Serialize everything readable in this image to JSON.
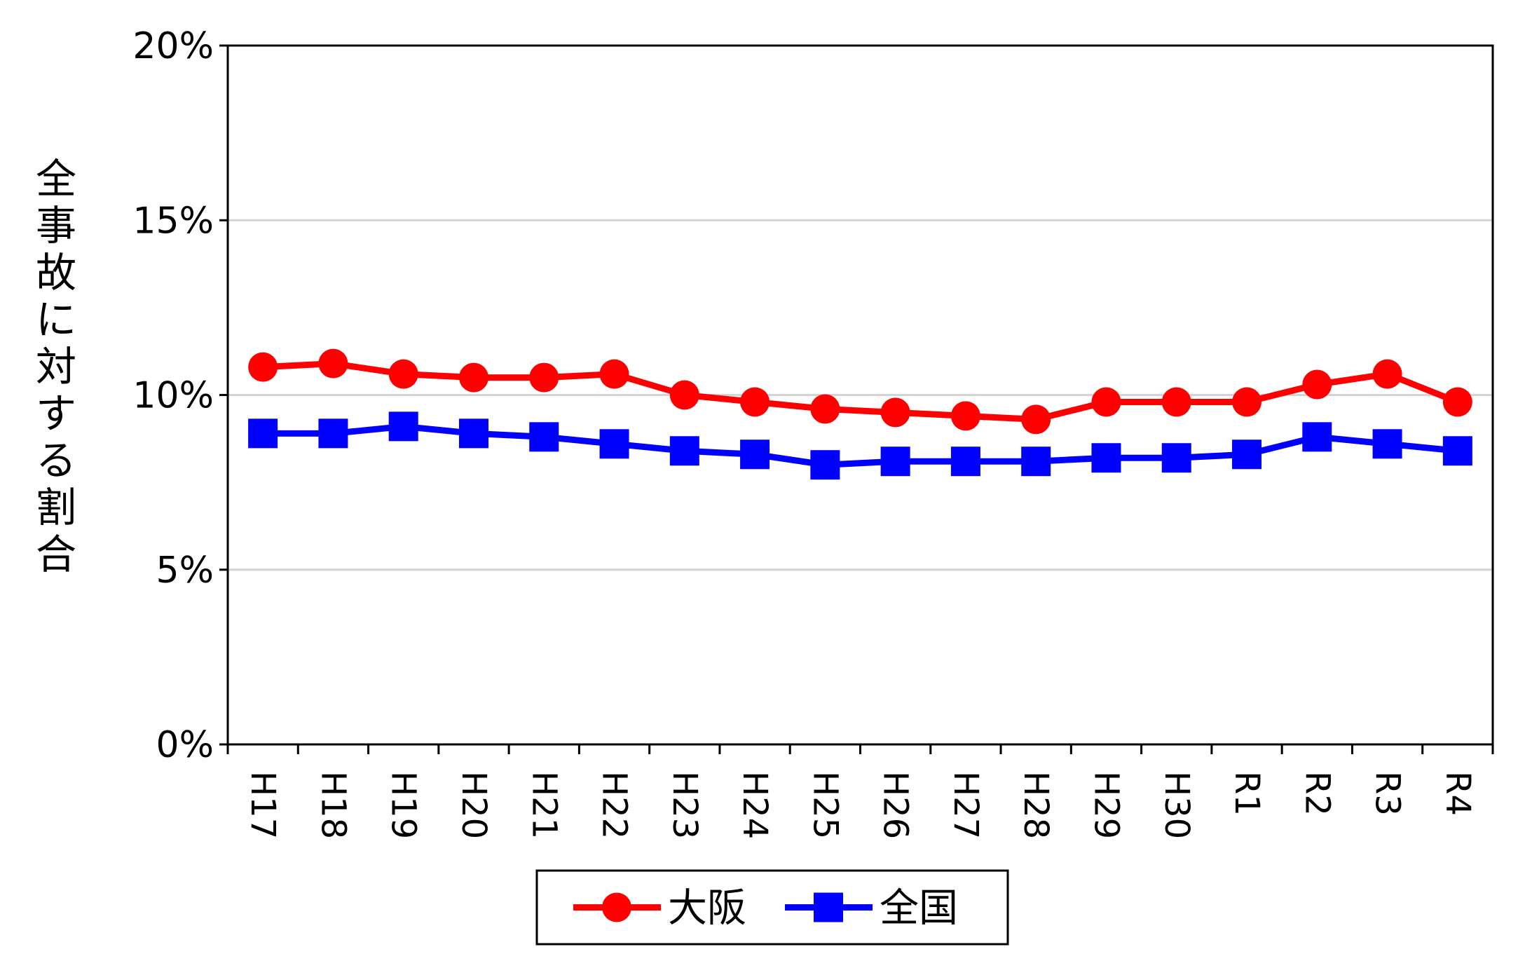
{
  "chart_data": {
    "type": "line",
    "ylabel": "全事故に対する割合",
    "xlabel": "",
    "title": "",
    "categories": [
      "H17",
      "H18",
      "H19",
      "H20",
      "H21",
      "H22",
      "H23",
      "H24",
      "H25",
      "H26",
      "H27",
      "H28",
      "H29",
      "H30",
      "R1",
      "R2",
      "R3",
      "R4"
    ],
    "ylim": [
      0,
      20
    ],
    "yticks": [
      "0%",
      "5%",
      "10%",
      "15%",
      "20%"
    ],
    "grid": true,
    "legend_position": "bottom",
    "series": [
      {
        "name": "大阪",
        "color": "#ff0000",
        "marker": "circle",
        "values": [
          10.8,
          10.9,
          10.6,
          10.5,
          10.5,
          10.6,
          10.0,
          9.8,
          9.6,
          9.5,
          9.4,
          9.3,
          9.8,
          9.8,
          9.8,
          10.3,
          10.6,
          9.8
        ]
      },
      {
        "name": "全国",
        "color": "#0000ff",
        "marker": "square",
        "values": [
          8.9,
          8.9,
          9.1,
          8.9,
          8.8,
          8.6,
          8.4,
          8.3,
          8.0,
          8.1,
          8.1,
          8.1,
          8.2,
          8.2,
          8.3,
          8.8,
          8.6,
          8.4
        ]
      }
    ]
  }
}
